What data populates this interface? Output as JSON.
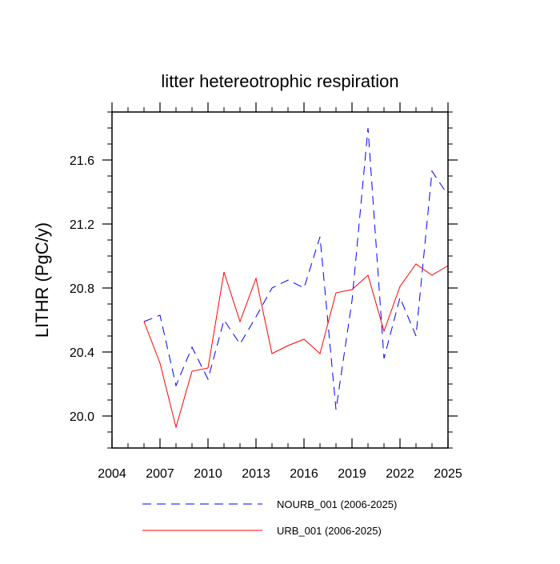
{
  "chart_data": {
    "type": "line",
    "title": "litter hetereotrophic respiration",
    "xlabel": "",
    "ylabel": "LITHR  (PgC/y)",
    "xlim": [
      2004,
      2025
    ],
    "ylim": [
      19.8,
      21.9
    ],
    "x_ticks": [
      2004,
      2007,
      2010,
      2013,
      2016,
      2019,
      2022,
      2025
    ],
    "x_tick_labels": [
      "2004",
      "2007",
      "2010",
      "2013",
      "2016",
      "2019",
      "2022",
      "2025"
    ],
    "y_ticks": [
      20.0,
      20.4,
      20.8,
      21.2,
      21.6
    ],
    "y_tick_labels": [
      "20.0",
      "20.4",
      "20.8",
      "21.2",
      "21.6"
    ],
    "x": [
      2006,
      2007,
      2008,
      2009,
      2010,
      2011,
      2012,
      2013,
      2014,
      2015,
      2016,
      2017,
      2018,
      2019,
      2020,
      2021,
      2022,
      2023,
      2024,
      2025
    ],
    "series": [
      {
        "name": "NOURB_001 (2006-2025)",
        "color": "#0000ff",
        "dash": "dashed",
        "values": [
          20.59,
          20.63,
          20.19,
          20.43,
          20.23,
          20.6,
          20.45,
          20.62,
          20.8,
          20.85,
          20.8,
          21.12,
          20.04,
          20.72,
          21.8,
          20.36,
          20.74,
          20.5,
          21.53,
          21.38
        ]
      },
      {
        "name": "URB_001 (2006-2025)",
        "color": "#ff0000",
        "dash": "solid",
        "values": [
          20.59,
          20.33,
          19.93,
          20.28,
          20.3,
          20.9,
          20.59,
          20.86,
          20.39,
          20.44,
          20.48,
          20.39,
          20.77,
          20.79,
          20.88,
          20.53,
          20.81,
          20.95,
          20.88,
          20.94
        ]
      }
    ],
    "legend_position": "bottom"
  }
}
